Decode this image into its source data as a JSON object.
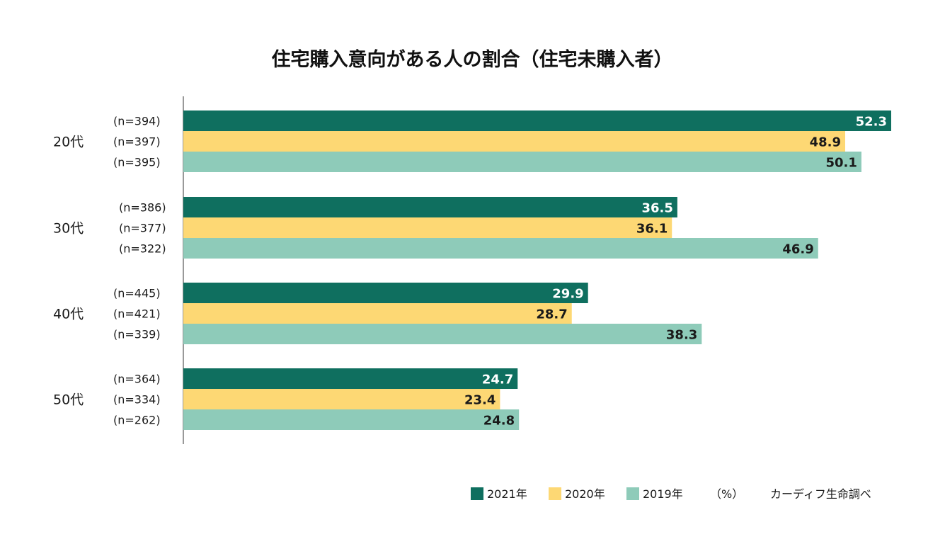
{
  "chart_data": {
    "type": "bar",
    "orientation": "horizontal",
    "title": "住宅購入意向がある人の割合（住宅未購入者）",
    "categories": [
      "20代",
      "30代",
      "40代",
      "50代"
    ],
    "series": [
      {
        "name": "2021年",
        "color": "#0f6f5f",
        "label_color": "#ffffff",
        "values": [
          52.3,
          36.5,
          29.9,
          24.7
        ],
        "value_labels": [
          "52.3",
          "36.5",
          "29.9",
          "24.7"
        ],
        "n": [
          "(n=394)",
          "(n=386)",
          "(n=445)",
          "(n=364)"
        ]
      },
      {
        "name": "2020年",
        "color": "#fdd874",
        "label_color": "#1a1a1a",
        "values": [
          48.9,
          36.1,
          28.7,
          23.4
        ],
        "value_labels": [
          "48.9",
          "36.1",
          "28.7",
          "23.4"
        ],
        "n": [
          "(n=397)",
          "(n=377)",
          "(n=421)",
          "(n=334)"
        ]
      },
      {
        "name": "2019年",
        "color": "#8ecbb9",
        "label_color": "#1a1a1a",
        "values": [
          50.1,
          46.9,
          38.3,
          24.8
        ],
        "value_labels": [
          "50.1",
          "46.9",
          "38.3",
          "24.8"
        ],
        "n": [
          "(n=395)",
          "(n=322)",
          "(n=339)",
          "(n=262)"
        ]
      }
    ],
    "xlim": [
      0,
      52.3
    ],
    "unit": "（%）",
    "source": "カーディフ生命調べ",
    "legend_position": "bottom-right",
    "grid": false
  }
}
